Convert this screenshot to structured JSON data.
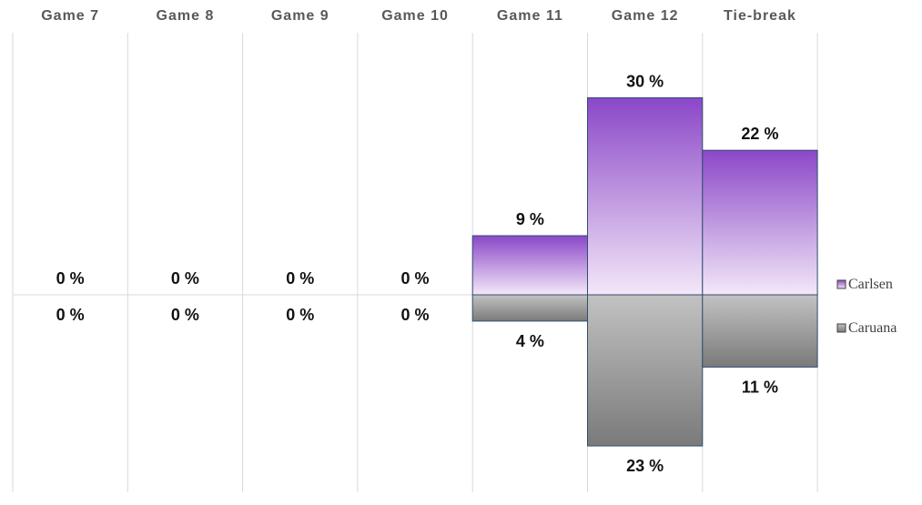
{
  "chart_data": {
    "type": "bar",
    "categories": [
      "Game 7",
      "Game 8",
      "Game 9",
      "Game 10",
      "Game 11",
      "Game 12",
      "Tie-break"
    ],
    "series": [
      {
        "name": "Carlsen",
        "values": [
          0,
          0,
          0,
          0,
          9,
          30,
          22
        ],
        "labels": [
          "0 %",
          "0 %",
          "0 %",
          "0 %",
          "9 %",
          "30 %",
          "22 %"
        ],
        "color_top": "#8B47C8",
        "color_bottom": "#F3E8F8",
        "direction": "up"
      },
      {
        "name": "Caruana",
        "values": [
          0,
          0,
          0,
          0,
          4,
          23,
          11
        ],
        "labels": [
          "0 %",
          "0 %",
          "0 %",
          "0 %",
          "4 %",
          "23 %",
          "11 %"
        ],
        "color_top": "#C2C2C2",
        "color_bottom": "#7A7A7A",
        "direction": "down"
      }
    ],
    "legend": "right",
    "grid": true,
    "ylim": [
      -40,
      40
    ]
  }
}
